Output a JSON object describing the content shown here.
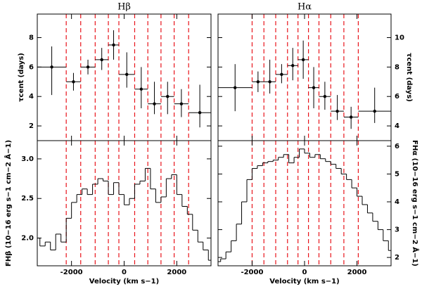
{
  "chart_data": [
    {
      "type": "scatter",
      "title": "Hβ",
      "ylabel": "τcent (days)",
      "color": "#000000",
      "vline_color": "#e8141b",
      "xlim": [
        -3300,
        3300
      ],
      "ylim": [
        1,
        9.6
      ],
      "yticks": [
        2,
        4,
        6,
        8
      ],
      "x": [
        -2750,
        -1925,
        -1375,
        -850,
        -400,
        100,
        650,
        1150,
        1650,
        2175,
        2875
      ],
      "xerr": [
        550,
        275,
        275,
        250,
        200,
        300,
        250,
        250,
        250,
        275,
        425
      ],
      "values": [
        6.0,
        5.0,
        6.0,
        6.5,
        7.5,
        5.5,
        4.5,
        3.5,
        4.0,
        3.5,
        2.9
      ],
      "err_minus": [
        1.9,
        0.6,
        0.5,
        0.7,
        1.0,
        0.9,
        1.3,
        0.7,
        1.2,
        0.9,
        1.0
      ],
      "err_plus": [
        1.4,
        0.6,
        0.5,
        0.8,
        1.0,
        1.5,
        1.5,
        1.5,
        1.0,
        1.0,
        1.9
      ],
      "vlines": [
        -2200,
        -1650,
        -1100,
        -600,
        -200,
        400,
        900,
        1400,
        1900,
        2450
      ]
    },
    {
      "type": "scatter",
      "title": "Hα",
      "ylabel": "τcent (days)",
      "color": "#000000",
      "vline_color": "#e8141b",
      "xlim": [
        -3300,
        3300
      ],
      "ylim": [
        3,
        11.6
      ],
      "yticks": [
        4,
        6,
        8,
        10
      ],
      "x": [
        -2650,
        -1775,
        -1325,
        -875,
        -450,
        -50,
        350,
        775,
        1250,
        1775,
        2675
      ],
      "xerr": [
        650,
        225,
        225,
        225,
        200,
        200,
        200,
        225,
        250,
        275,
        625
      ],
      "values": [
        6.6,
        7.0,
        7.0,
        7.5,
        8.1,
        8.5,
        6.6,
        6.0,
        5.0,
        4.6,
        5.0
      ],
      "err_minus": [
        1.6,
        0.7,
        0.8,
        0.6,
        1.0,
        1.3,
        1.4,
        0.9,
        0.6,
        0.8,
        0.8
      ],
      "err_plus": [
        1.6,
        0.7,
        1.5,
        0.7,
        1.2,
        1.3,
        1.4,
        1.0,
        1.1,
        0.7,
        1.6
      ],
      "vlines": [
        -2000,
        -1550,
        -1100,
        -650,
        -250,
        150,
        550,
        1000,
        1500,
        2050
      ]
    },
    {
      "type": "line",
      "ylabel": "FHβ (10−16 erg s−1 cm−2 Å−1)",
      "xlabel": "Velocity (km s−1)",
      "color": "#000000",
      "vline_color": "#e8141b",
      "xlim": [
        -3300,
        3300
      ],
      "ylim": [
        1.65,
        3.23
      ],
      "xticks": [
        -2000,
        0,
        2000
      ],
      "yticks": [
        {
          "value": 2.0,
          "label": "2.0"
        },
        {
          "value": 2.5,
          "label": "2.5"
        },
        {
          "value": 3.0,
          "label": "3.0"
        }
      ],
      "x": [
        -3300,
        -3100,
        -2900,
        -2700,
        -2500,
        -2300,
        -2100,
        -1900,
        -1700,
        -1500,
        -1300,
        -1100,
        -900,
        -700,
        -500,
        -300,
        -100,
        100,
        300,
        500,
        700,
        900,
        1100,
        1300,
        1500,
        1700,
        1900,
        2100,
        2300,
        2500,
        2700,
        2900,
        3100,
        3300
      ],
      "values": [
        2.0,
        1.9,
        1.95,
        1.85,
        2.05,
        1.95,
        2.25,
        2.45,
        2.55,
        2.62,
        2.55,
        2.68,
        2.75,
        2.72,
        2.55,
        2.7,
        2.55,
        2.42,
        2.5,
        2.68,
        2.72,
        2.88,
        2.62,
        2.45,
        2.52,
        2.75,
        2.8,
        2.55,
        2.4,
        2.3,
        2.1,
        1.95,
        1.85,
        1.72
      ],
      "vlines": [
        -2200,
        -1650,
        -1100,
        -600,
        -200,
        400,
        900,
        1400,
        1900,
        2450
      ]
    },
    {
      "type": "line",
      "ylabel": "FHα (10−16 erg s−1 cm−2 Å−1)",
      "xlabel": "Velocity (km s−1)",
      "color": "#000000",
      "vline_color": "#e8141b",
      "xlim": [
        -3300,
        3300
      ],
      "ylim": [
        1.7,
        6.2
      ],
      "xticks": [
        -2000,
        0,
        2000
      ],
      "yticks": [
        2,
        3,
        4,
        5,
        6
      ],
      "x": [
        -3300,
        -3100,
        -2900,
        -2700,
        -2500,
        -2300,
        -2100,
        -1900,
        -1700,
        -1500,
        -1300,
        -1100,
        -900,
        -700,
        -500,
        -300,
        -100,
        100,
        300,
        500,
        700,
        900,
        1100,
        1300,
        1500,
        1700,
        1900,
        2100,
        2300,
        2500,
        2700,
        2900,
        3100,
        3300
      ],
      "values": [
        1.85,
        1.95,
        2.2,
        2.6,
        3.2,
        4.0,
        4.8,
        5.2,
        5.3,
        5.4,
        5.45,
        5.5,
        5.6,
        5.7,
        5.4,
        5.6,
        5.9,
        5.75,
        5.6,
        5.7,
        5.55,
        5.45,
        5.35,
        5.2,
        5.0,
        4.8,
        4.5,
        4.2,
        3.9,
        3.6,
        3.3,
        3.0,
        2.6,
        2.25
      ],
      "vlines": [
        -2000,
        -1550,
        -1100,
        -650,
        -250,
        150,
        550,
        1000,
        1500,
        2050
      ]
    }
  ]
}
